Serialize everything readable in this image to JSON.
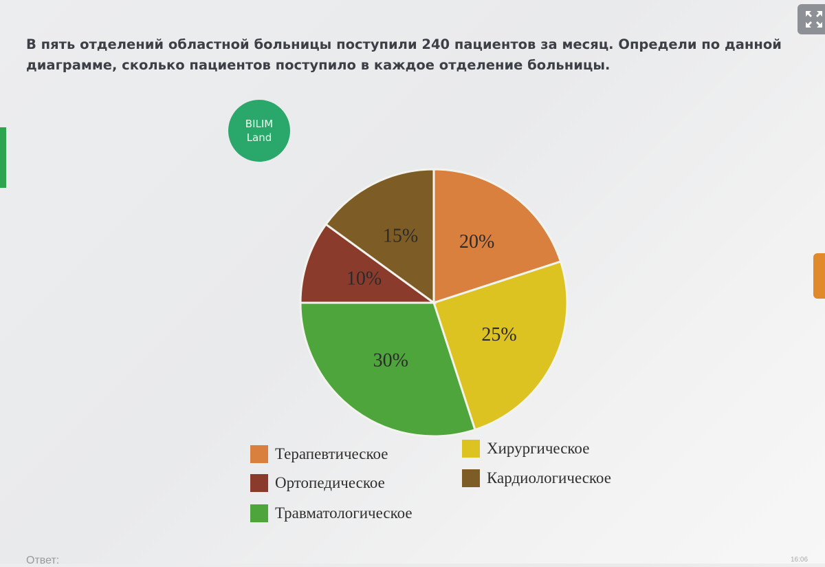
{
  "question": "В пять отделений областной больницы поступили 240 пациентов за месяц. Определи по данной диаграмме, сколько пациентов поступило в каждое отделение больницы.",
  "logo": {
    "line1": "BILIM",
    "line2": "Land"
  },
  "answer_label": "Ответ:",
  "clock": "16:06",
  "ui": {
    "expand_icon": "expand-icon",
    "accent_green": "#2ea44f",
    "accent_orange": "#e08a2c"
  },
  "chart_data": {
    "type": "pie",
    "title": "",
    "slices": [
      {
        "name": "Терапевтическое",
        "value": 20,
        "label": "20%",
        "color": "#d9803f"
      },
      {
        "name": "Хирургическое",
        "value": 25,
        "label": "25%",
        "color": "#dcc321"
      },
      {
        "name": "Травматологическое",
        "value": 30,
        "label": "30%",
        "color": "#4ea53b"
      },
      {
        "name": "Ортопедическое",
        "value": 10,
        "label": "10%",
        "color": "#8a3b2b"
      },
      {
        "name": "Кардиологическое",
        "value": 15,
        "label": "15%",
        "color": "#7e5c25"
      }
    ],
    "legend": {
      "placement": "bottom",
      "items": [
        {
          "name": "Терапевтическое",
          "color": "#d9803f"
        },
        {
          "name": "Хирургическое",
          "color": "#dcc321"
        },
        {
          "name": "Ортопедическое",
          "color": "#8a3b2b"
        },
        {
          "name": "Кардиологическое",
          "color": "#7e5c25"
        },
        {
          "name": "Травматологическое",
          "color": "#4ea53b"
        }
      ]
    }
  }
}
